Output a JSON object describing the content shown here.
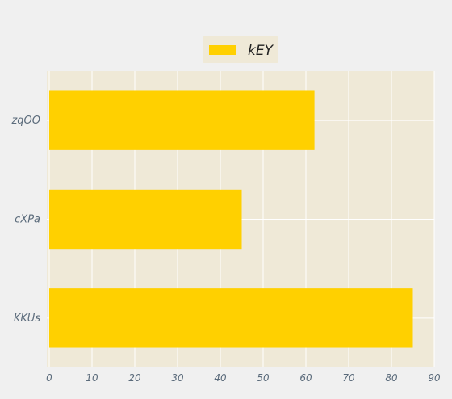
{
  "chart_data": {
    "type": "bar",
    "orientation": "horizontal",
    "categories": [
      "KKUs",
      "cXPa",
      "zqOO"
    ],
    "series": [
      {
        "name": "kEY",
        "values": [
          85,
          45,
          62
        ],
        "color": "#ffd000"
      }
    ],
    "title": "",
    "xlabel": "",
    "ylabel": "",
    "xlim": [
      0,
      90
    ],
    "xticks": [
      0,
      10,
      20,
      30,
      40,
      50,
      60,
      70,
      80,
      90
    ],
    "grid": true,
    "legend_position": "top-center",
    "colors": {
      "background": "#f0f0f0",
      "plot_background": "#efe9d7",
      "grid": "#ffffff",
      "tick_label": "#5b6b7b",
      "legend_text": "#222222"
    }
  }
}
